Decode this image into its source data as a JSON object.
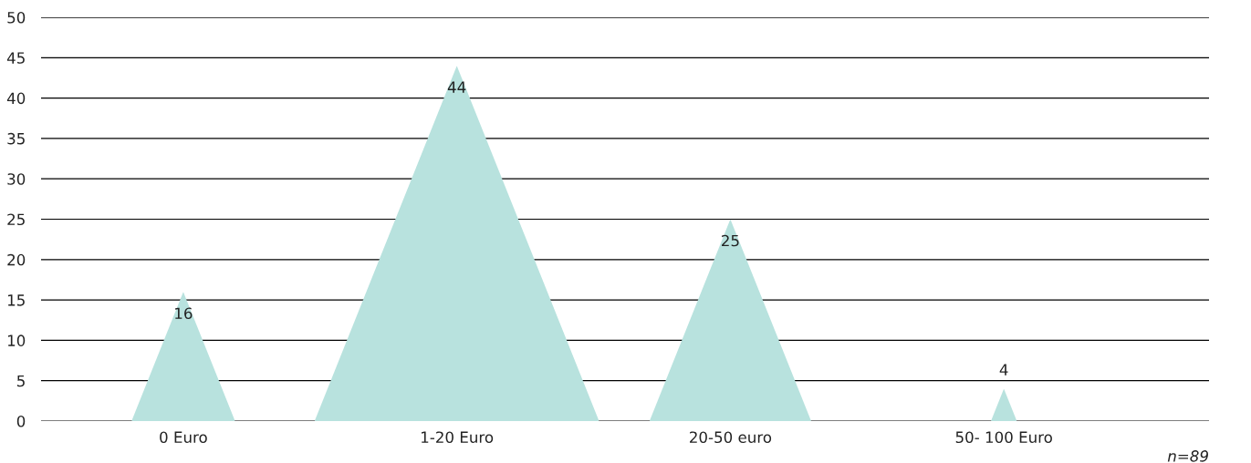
{
  "chart_data": {
    "type": "bar",
    "categories": [
      "0 Euro",
      "1-20 Euro",
      "20-50 euro",
      "50- 100 Euro"
    ],
    "values": [
      16,
      44,
      25,
      4
    ],
    "color": "#b8e2de",
    "ylim": [
      0,
      50
    ],
    "yticks": [
      0,
      5,
      10,
      15,
      20,
      25,
      30,
      35,
      40,
      45,
      50
    ],
    "grid": "y",
    "data_labels": true,
    "annotations": [
      "n=89"
    ]
  }
}
